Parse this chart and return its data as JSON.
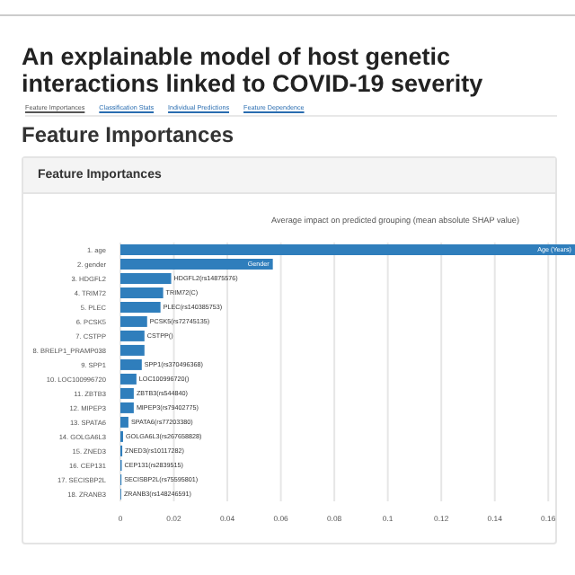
{
  "chart_data": {
    "type": "bar",
    "orientation": "horizontal",
    "title": "An explainable model of host genetic interactions linked to COVID-19 severity",
    "subtitle": "Feature Importances",
    "annotations": [
      "Feature Importances",
      "Classification Stats",
      "Individual Predictions",
      "Feature Dependence",
      "Feature Importances",
      "Average impact on predicted grouping (mean absolute SHAP value)"
    ],
    "categories": [
      "1. age",
      "2. gender",
      "3. HDGFL2",
      "4. TRIM72",
      "5. PLEC",
      "6. PCSK5",
      "7. CSTPP",
      "8. BRELP1_PRAMP038",
      "9. SPP1",
      "10. LOC100996720",
      "11. ZBTB3",
      "12. MIPEP3",
      "13. SPATA6",
      "14. GOLGA6L3",
      "15. ZNED3",
      "16. CEP131",
      "17. SECISBP2L",
      "18. ZRANB3"
    ],
    "values": [
      0.17,
      0.057,
      0.019,
      0.016,
      0.015,
      0.01,
      0.009,
      0.009,
      0.008,
      0.006,
      0.005,
      0.005,
      0.003,
      0.001,
      0.0007,
      0.0005,
      0.0004,
      0.0003
    ],
    "value_labels": [
      "Age (Years)",
      "Gender",
      "HDGFL2(rs14875576)",
      "TRIM72(C)",
      "PLEC(rs140385753)",
      "PCSK5(rs72745135)",
      "CSTPP()",
      null,
      "SPP1(rs370496368)",
      "LOC100996720()",
      "ZBTB3(rs544840)",
      "MIPEP3(rs79402775)",
      "SPATA6(rs77203380)",
      "GOLGA6L3(rs267658828)",
      "ZNED3(rs10117282)",
      "CEP131(rs2839515)",
      "SECISBP2L(rs75595801)",
      "ZRANB3(rs148246591)"
    ],
    "color": "#2f7ebc",
    "xlim": [
      0,
      0.17
    ],
    "xticks": [
      0,
      0.02,
      0.04,
      0.06,
      0.08,
      {
        "value": 0.1,
        "label": "0.1"
      },
      0.12,
      0.14,
      0.16
    ],
    "grid": "x"
  }
}
